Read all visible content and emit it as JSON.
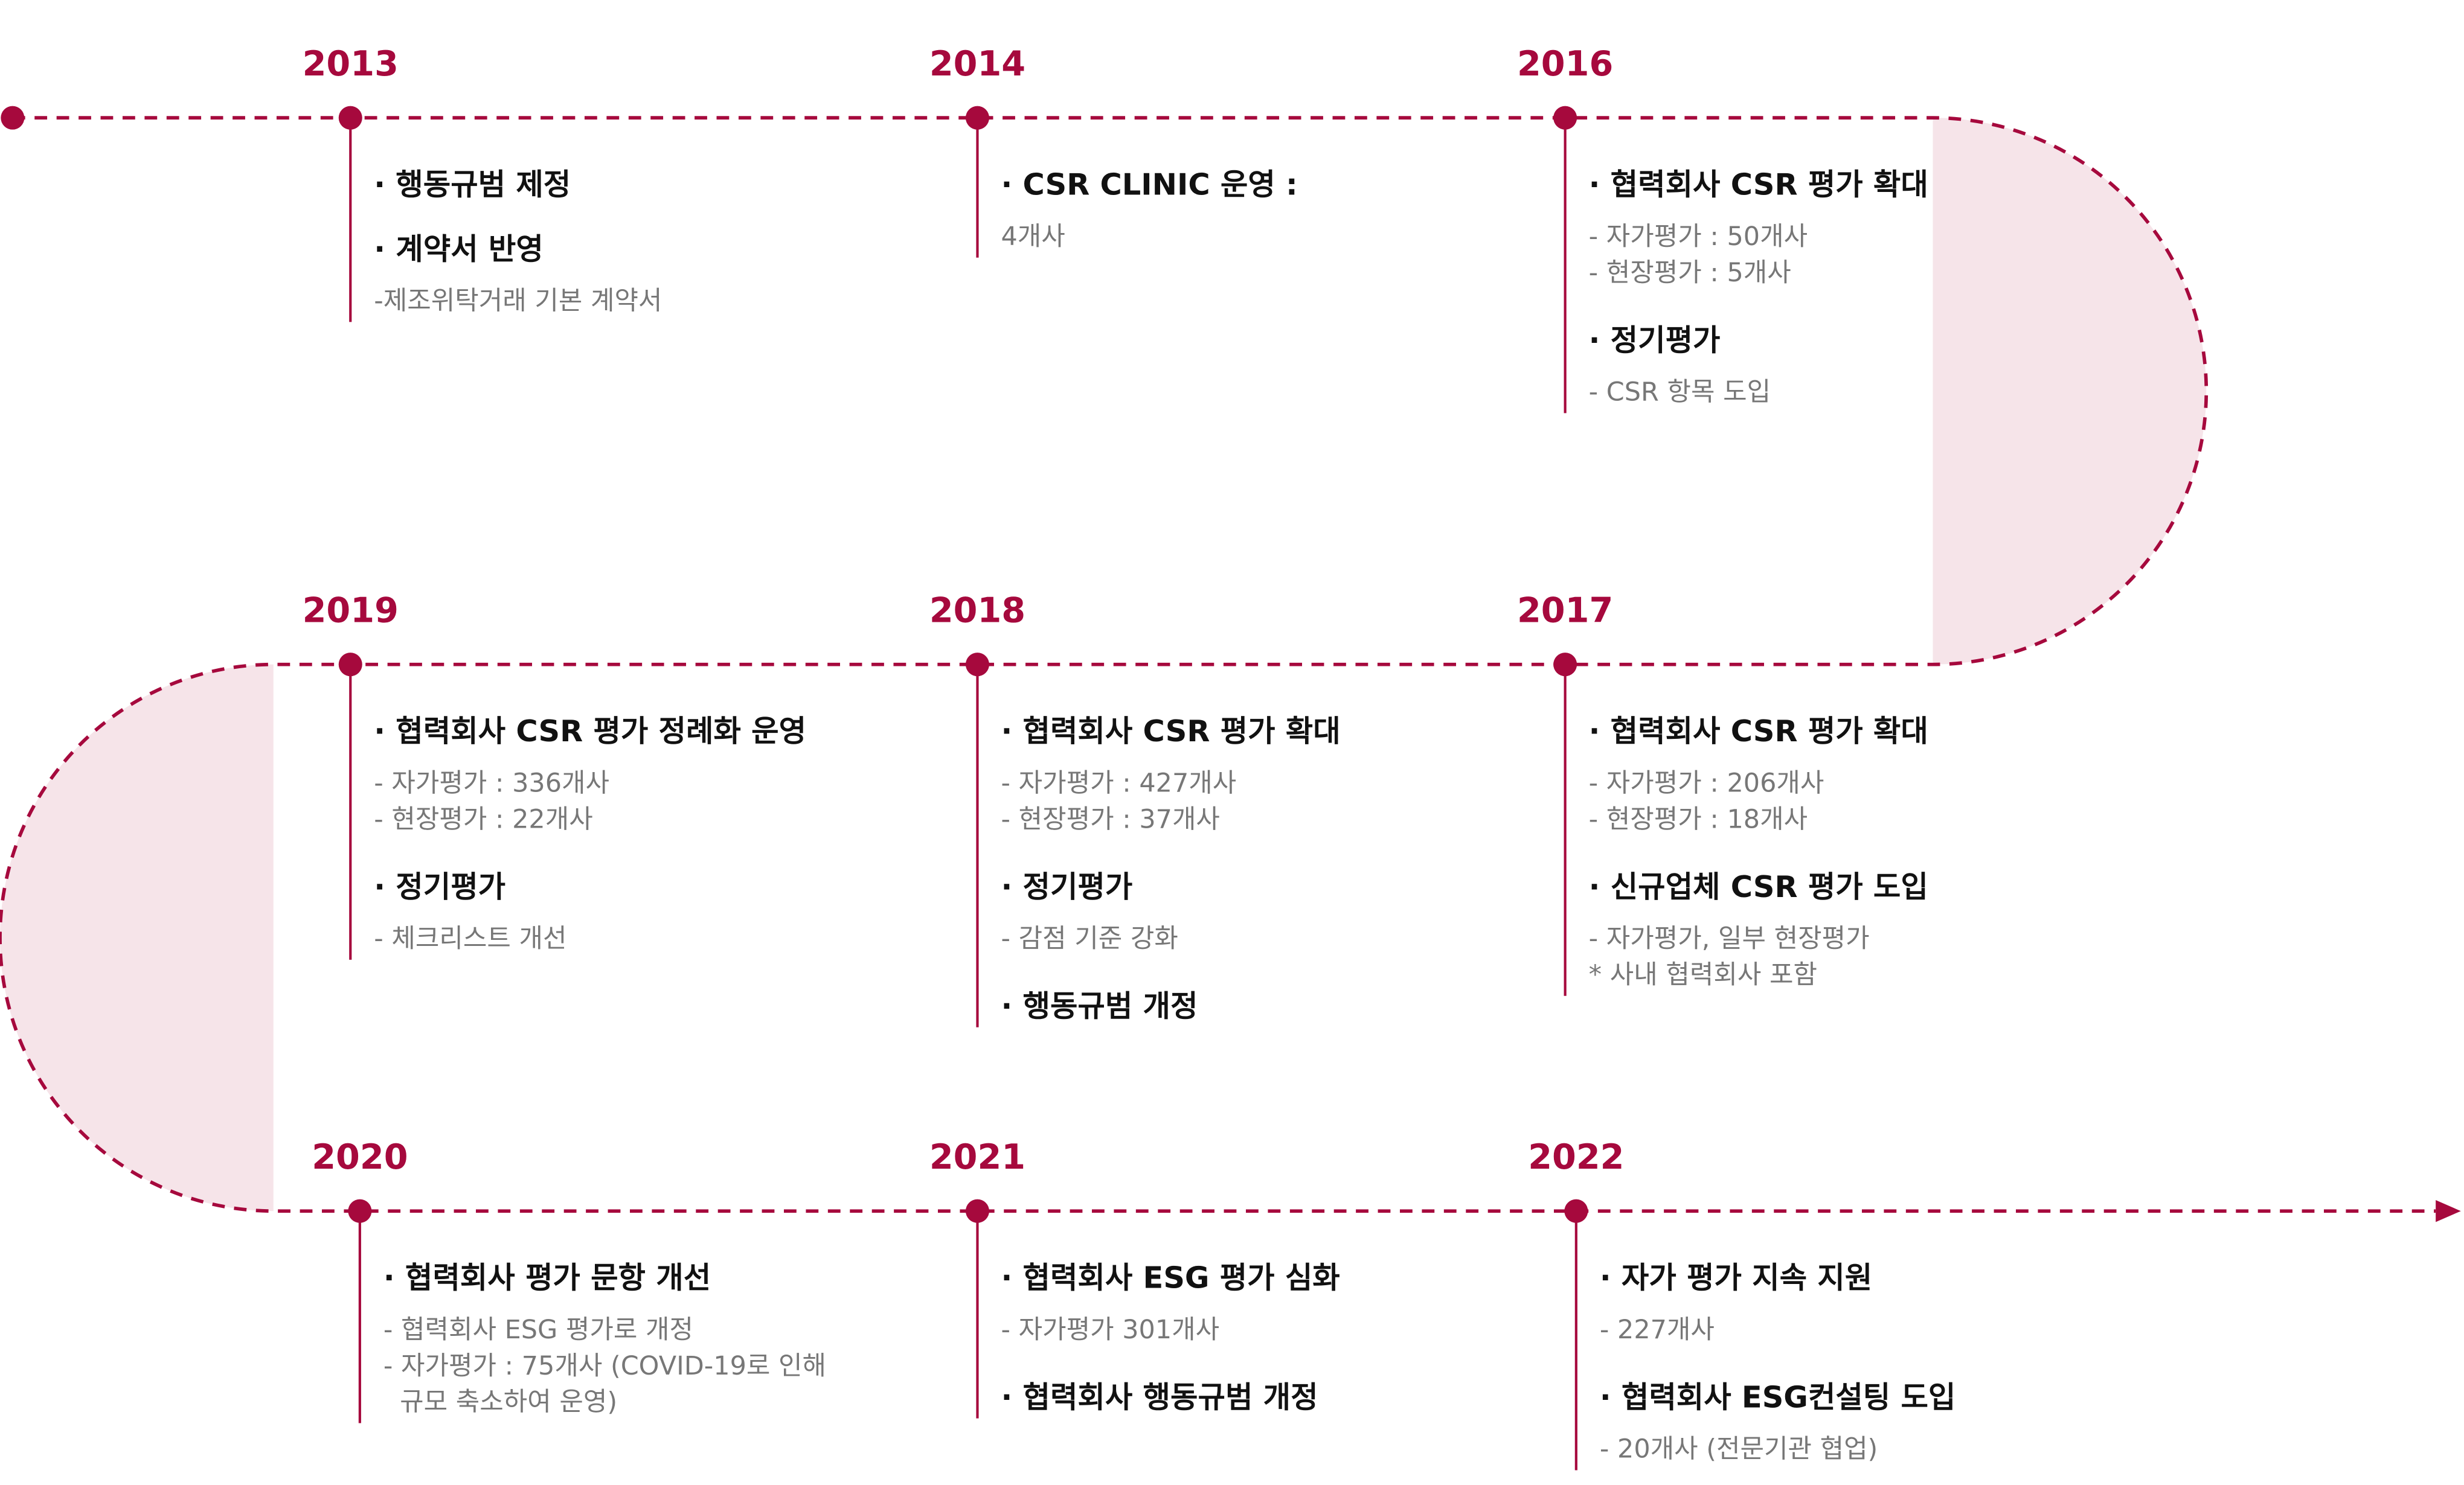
{
  "timeline": [
    {
      "year": "2013",
      "items": [
        {
          "heading": "· 행동규범 제정",
          "details": []
        },
        {
          "heading": "· 계약서 반영",
          "details": [
            "-제조위탁거래 기본 계약서"
          ]
        }
      ]
    },
    {
      "year": "2014",
      "items": [
        {
          "heading": "· CSR CLINIC 운영 :",
          "details": [
            "4개사"
          ]
        }
      ]
    },
    {
      "year": "2016",
      "items": [
        {
          "heading": "· 협력회사 CSR 평가 확대",
          "details": [
            "- 자가평가 : 50개사",
            "- 현장평가 : 5개사"
          ]
        },
        {
          "heading": "· 정기평가",
          "details": [
            "- CSR 항목 도입"
          ]
        }
      ]
    },
    {
      "year": "2017",
      "items": [
        {
          "heading": "· 협력회사 CSR 평가 확대",
          "details": [
            "- 자가평가 : 206개사",
            "- 현장평가 : 18개사"
          ]
        },
        {
          "heading": "· 신규업체 CSR 평가 도입",
          "details": [
            "- 자가평가, 일부 현장평가",
            "* 사내 협력회사 포함"
          ]
        }
      ]
    },
    {
      "year": "2018",
      "items": [
        {
          "heading": "· 협력회사 CSR 평가 확대",
          "details": [
            "- 자가평가 : 427개사",
            "- 현장평가 : 37개사"
          ]
        },
        {
          "heading": "· 정기평가",
          "details": [
            "- 감점 기준 강화"
          ]
        },
        {
          "heading": "· 행동규범 개정",
          "details": []
        }
      ]
    },
    {
      "year": "2019",
      "items": [
        {
          "heading": "· 협력회사 CSR 평가 정례화 운영",
          "details": [
            "- 자가평가 : 336개사",
            "- 현장평가 : 22개사"
          ]
        },
        {
          "heading": "· 정기평가",
          "details": [
            "- 체크리스트 개선"
          ]
        }
      ]
    },
    {
      "year": "2020",
      "items": [
        {
          "heading": "· 협력회사 평가 문항 개선",
          "details": [
            "- 협력회사 ESG 평가로 개정",
            "- 자가평가 : 75개사 (COVID-19로 인해",
            "  규모 축소하여 운영)"
          ]
        }
      ]
    },
    {
      "year": "2021",
      "items": [
        {
          "heading": "· 협력회사 ESG 평가 심화",
          "details": [
            "- 자가평가 301개사"
          ]
        },
        {
          "heading": "· 협력회사 행동규범 개정",
          "details": []
        }
      ]
    },
    {
      "year": "2022",
      "items": [
        {
          "heading": "· 자가 평가 지속 지원",
          "details": [
            "- 227개사"
          ]
        },
        {
          "heading": "· 협력회사 ESG컨설팅 도입",
          "details": [
            "- 20개사 (전문기관 협업)"
          ]
        }
      ]
    }
  ]
}
